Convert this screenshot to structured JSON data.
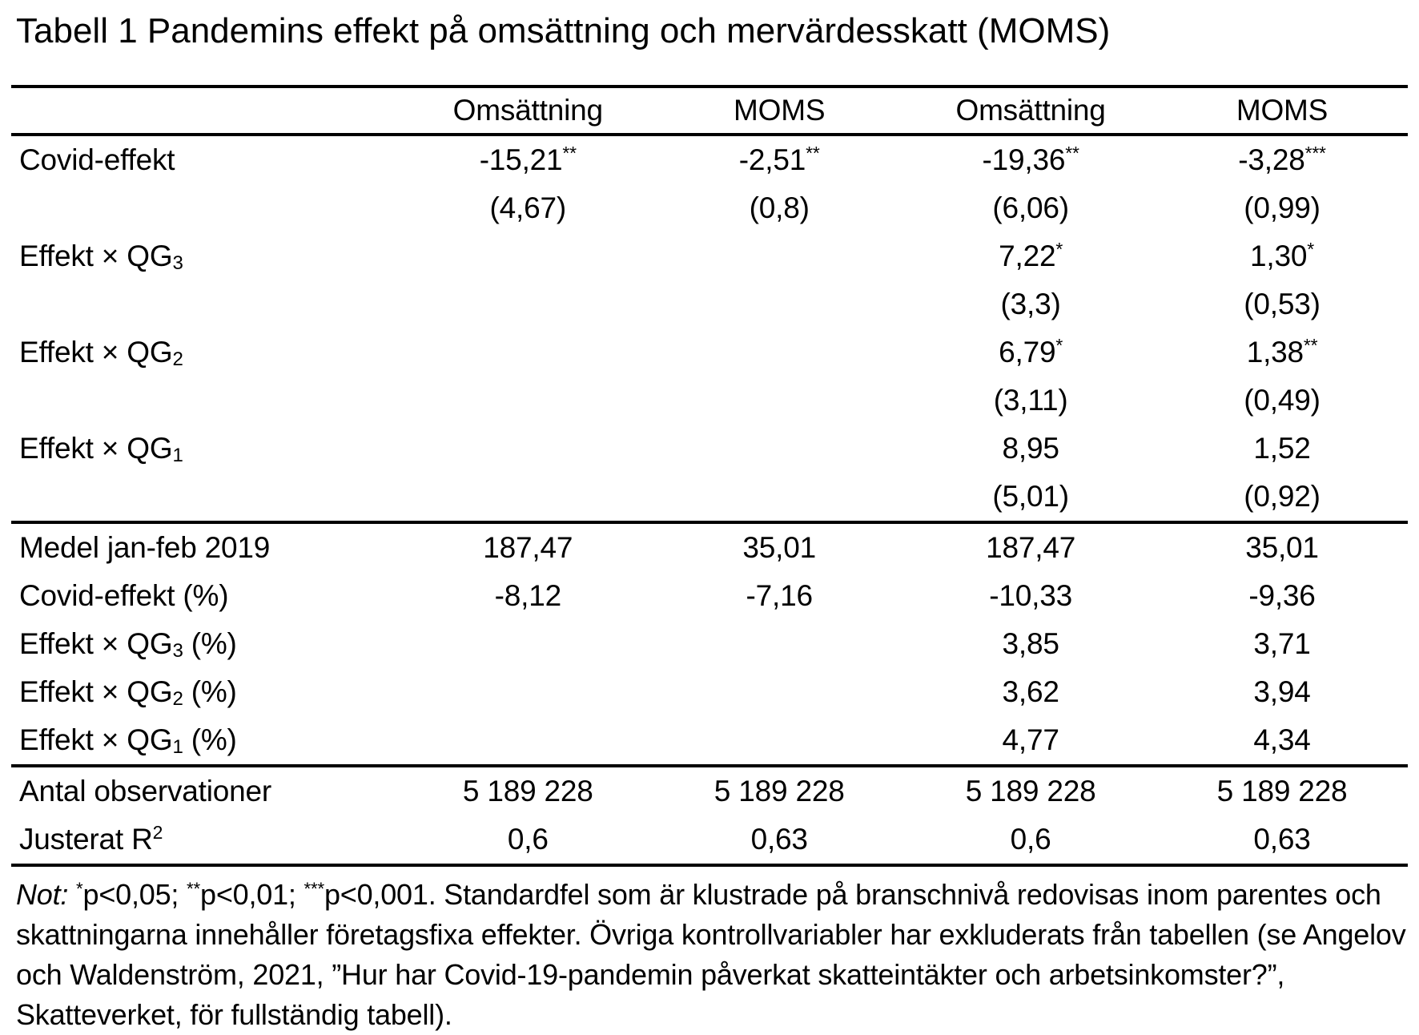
{
  "title": "Tabell 1 Pandemins effekt på omsättning och mervärdesskatt (MOMS)",
  "table": {
    "header_columns": [
      "Omsättning",
      "MOMS",
      "Omsättning",
      "MOMS"
    ],
    "sections": [
      {
        "name": "coefficients",
        "rows": [
          {
            "label": {
              "text": "Covid-effekt"
            },
            "cells": [
              {
                "v": "-15,21",
                "sup": "**"
              },
              {
                "v": "-2,51",
                "sup": "**"
              },
              {
                "v": "-19,36",
                "sup": "**"
              },
              {
                "v": "-3,28",
                "sup": "***"
              }
            ]
          },
          {
            "label": {
              "text": ""
            },
            "cells": [
              {
                "v": "(4,67)"
              },
              {
                "v": "(0,8)"
              },
              {
                "v": "(6,06)"
              },
              {
                "v": "(0,99)"
              }
            ]
          },
          {
            "label": {
              "text": "Effekt × QG",
              "sub": "3"
            },
            "cells": [
              {
                "v": ""
              },
              {
                "v": ""
              },
              {
                "v": "7,22",
                "sup": "*"
              },
              {
                "v": "1,30",
                "sup": "*"
              }
            ]
          },
          {
            "label": {
              "text": ""
            },
            "cells": [
              {
                "v": ""
              },
              {
                "v": ""
              },
              {
                "v": "(3,3)"
              },
              {
                "v": "(0,53)"
              }
            ]
          },
          {
            "label": {
              "text": "Effekt × QG",
              "sub": "2"
            },
            "cells": [
              {
                "v": ""
              },
              {
                "v": ""
              },
              {
                "v": "6,79",
                "sup": "*"
              },
              {
                "v": "1,38",
                "sup": "**"
              }
            ]
          },
          {
            "label": {
              "text": ""
            },
            "cells": [
              {
                "v": ""
              },
              {
                "v": ""
              },
              {
                "v": "(3,11)"
              },
              {
                "v": "(0,49)"
              }
            ]
          },
          {
            "label": {
              "text": "Effekt × QG",
              "sub": "1"
            },
            "cells": [
              {
                "v": ""
              },
              {
                "v": ""
              },
              {
                "v": "8,95"
              },
              {
                "v": "1,52"
              }
            ]
          },
          {
            "label": {
              "text": ""
            },
            "cells": [
              {
                "v": ""
              },
              {
                "v": ""
              },
              {
                "v": "(5,01)"
              },
              {
                "v": "(0,92)"
              }
            ]
          }
        ]
      },
      {
        "name": "means-and-percent",
        "rows": [
          {
            "label": {
              "text": "Medel jan-feb 2019"
            },
            "cells": [
              {
                "v": "187,47"
              },
              {
                "v": "35,01"
              },
              {
                "v": "187,47"
              },
              {
                "v": "35,01"
              }
            ]
          },
          {
            "label": {
              "text": "Covid-effekt (%)"
            },
            "cells": [
              {
                "v": "-8,12"
              },
              {
                "v": "-7,16"
              },
              {
                "v": "-10,33"
              },
              {
                "v": "-9,36"
              }
            ]
          },
          {
            "label": {
              "text": "Effekt × QG",
              "sub": "3",
              "suffix": " (%)"
            },
            "cells": [
              {
                "v": ""
              },
              {
                "v": ""
              },
              {
                "v": "3,85"
              },
              {
                "v": "3,71"
              }
            ]
          },
          {
            "label": {
              "text": "Effekt × QG",
              "sub": "2",
              "suffix": " (%)"
            },
            "cells": [
              {
                "v": ""
              },
              {
                "v": ""
              },
              {
                "v": "3,62"
              },
              {
                "v": "3,94"
              }
            ]
          },
          {
            "label": {
              "text": "Effekt × QG",
              "sub": "1",
              "suffix": " (%)"
            },
            "cells": [
              {
                "v": ""
              },
              {
                "v": ""
              },
              {
                "v": "4,77"
              },
              {
                "v": "4,34"
              }
            ]
          }
        ]
      },
      {
        "name": "model-stats",
        "rows": [
          {
            "label": {
              "text": "Antal observationer"
            },
            "cells": [
              {
                "v": "5 189 228"
              },
              {
                "v": "5 189 228"
              },
              {
                "v": "5 189 228"
              },
              {
                "v": "5 189 228"
              }
            ]
          },
          {
            "label": {
              "text": "Justerat R",
              "sup": "2"
            },
            "cells": [
              {
                "v": "0,6"
              },
              {
                "v": "0,63"
              },
              {
                "v": "0,6"
              },
              {
                "v": "0,63"
              }
            ]
          }
        ]
      }
    ]
  },
  "note": {
    "segments": [
      {
        "t": "Not: ",
        "italic": true
      },
      {
        "t": "*",
        "sup": true
      },
      {
        "t": "p<0,05; "
      },
      {
        "t": "**",
        "sup": true
      },
      {
        "t": "p<0,01; "
      },
      {
        "t": "***",
        "sup": true
      },
      {
        "t": "p<0,001. Standardfel som är klustrade på branschnivå redovisas inom parentes och skattningarna innehåller företagsfixa effekter. Övriga kontrollvariabler har exkluderats från tabellen (se Angelov och Waldenström, 2021, ”Hur har Covid-19-pandemin påverkat skatteintäkter och arbetsinkomster?”, Skatteverket, för fullständig tabell)."
      }
    ]
  }
}
